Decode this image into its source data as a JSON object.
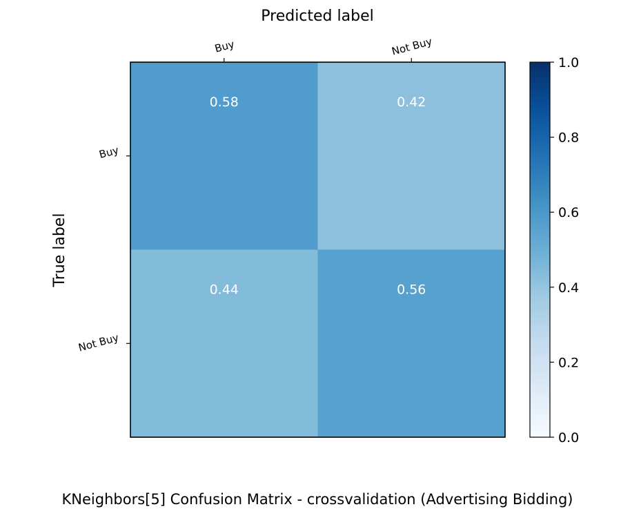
{
  "chart_data": {
    "type": "heatmap",
    "title": "KNeighbors[5] Confusion Matrix - crossvalidation (Advertising Bidding)",
    "xlabel": "Predicted label",
    "ylabel": "True label",
    "x_categories": [
      "Buy",
      "Not Buy"
    ],
    "y_categories": [
      "Buy",
      "Not Buy"
    ],
    "values": [
      [
        0.58,
        0.42
      ],
      [
        0.44,
        0.56
      ]
    ],
    "value_labels": [
      [
        "0.58",
        "0.42"
      ],
      [
        "0.44",
        "0.56"
      ]
    ],
    "colorbar": {
      "range": [
        0.0,
        1.0
      ],
      "ticks": [
        "0.0",
        "0.2",
        "0.4",
        "0.6",
        "0.8",
        "1.0"
      ],
      "colormap": "Blues"
    }
  }
}
